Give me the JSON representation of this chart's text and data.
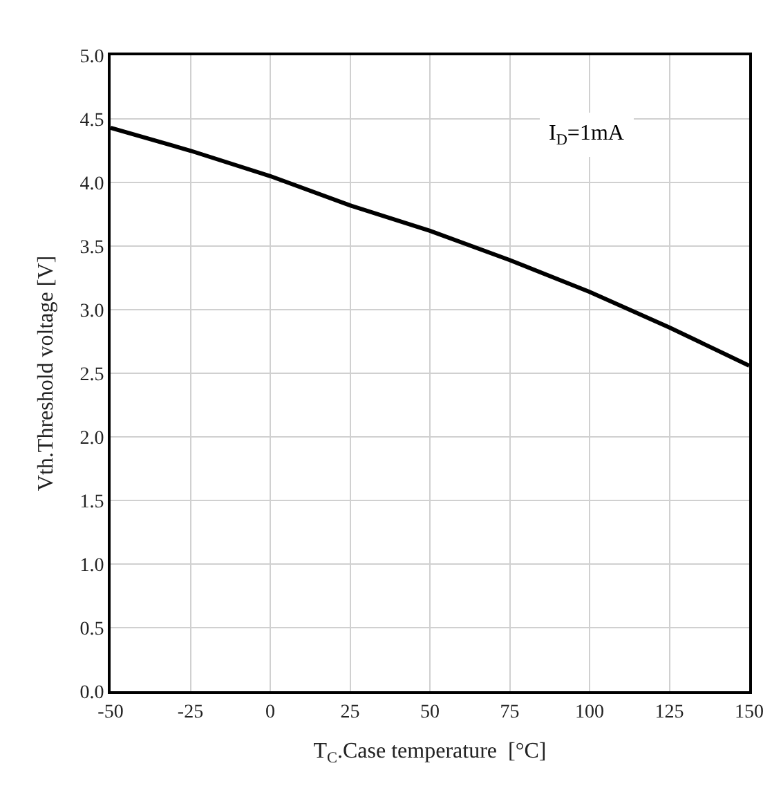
{
  "chart_data": {
    "type": "line",
    "xlabel": "T$_{C}$.Case temperature  [°C]",
    "ylabel": "Vth.Threshold voltage [V]",
    "annotations": [
      "I$_{D}$=1mA"
    ],
    "x": [
      -50,
      -25,
      0,
      25,
      50,
      75,
      100,
      125,
      150
    ],
    "series": [
      {
        "color": "#000000",
        "values": [
          4.43,
          4.25,
          4.05,
          3.82,
          3.62,
          3.39,
          3.14,
          2.86,
          2.56
        ]
      }
    ],
    "xlim": [
      -50,
      150
    ],
    "xticks": [
      -50,
      -25,
      0,
      25,
      50,
      75,
      100,
      125,
      150
    ],
    "ylim": [
      0,
      5
    ],
    "yticks": [
      {
        "value": 0,
        "label": "0.0"
      },
      {
        "value": 0.5,
        "label": "0.5"
      },
      {
        "value": 1,
        "label": "1.0"
      },
      {
        "value": 1.5,
        "label": "1.5"
      },
      {
        "value": 2,
        "label": "2.0"
      },
      {
        "value": 2.5,
        "label": "2.5"
      },
      {
        "value": 3,
        "label": "3.0"
      },
      {
        "value": 3.5,
        "label": "3.5"
      },
      {
        "value": 4,
        "label": "4.0"
      },
      {
        "value": 4.5,
        "label": "4.5"
      },
      {
        "value": 5,
        "label": "5.0"
      }
    ],
    "grid": true,
    "marker": "none",
    "line_style": "solid",
    "legend": false
  }
}
